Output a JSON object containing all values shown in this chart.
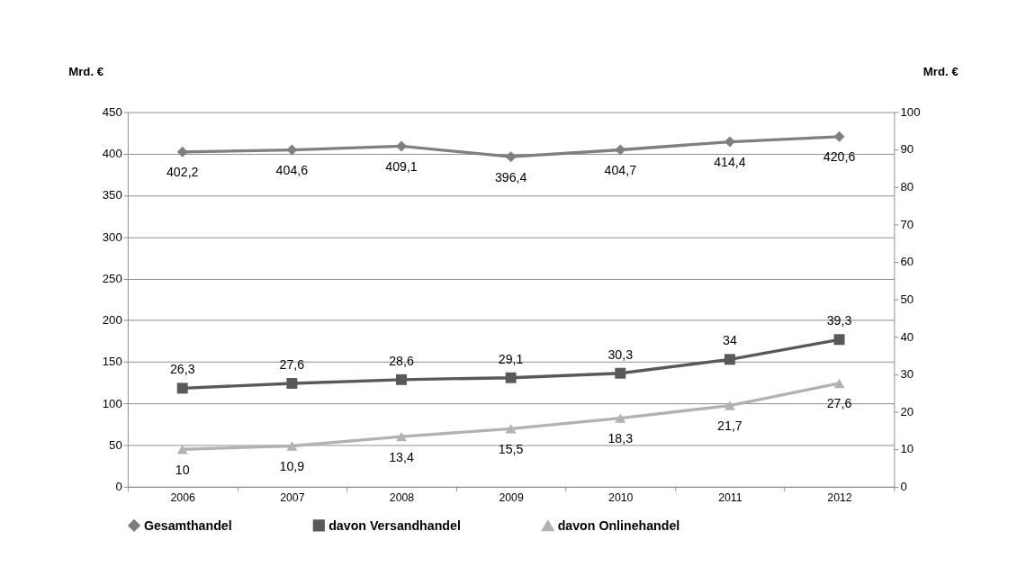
{
  "chart_data": {
    "type": "line",
    "ylabel": "Mrd. €",
    "y2label": "Mrd. €",
    "categories": [
      "2006",
      "2007",
      "2008",
      "2009",
      "2010",
      "2011",
      "2012"
    ],
    "series": [
      {
        "name": "Gesamthandel",
        "color": "#7f7f7f",
        "marker": "diamond",
        "values": [
          402.2,
          404.6,
          409.1,
          396.4,
          404.7,
          414.4,
          420.6
        ],
        "value_labels": [
          "402,2",
          "404,6",
          "409,1",
          "396,4",
          "404,7",
          "414,4",
          "420,6"
        ]
      },
      {
        "name": "davon Versandhandel",
        "color": "#595959",
        "marker": "square",
        "axis": "y2",
        "values": [
          26.3,
          27.6,
          28.6,
          29.1,
          30.3,
          34,
          39.3
        ],
        "value_labels": [
          "26,3",
          "27,6",
          "28,6",
          "29,1",
          "30,3",
          "34",
          "39,3"
        ]
      },
      {
        "name": "davon Onlinehandel",
        "color": "#b2b2b2",
        "marker": "triangle",
        "axis": "y2",
        "values": [
          10,
          10.9,
          13.4,
          15.5,
          18.3,
          21.7,
          27.6
        ],
        "value_labels": [
          "10",
          "10,9",
          "13,4",
          "15,5",
          "18,3",
          "21,7",
          "27,6"
        ]
      }
    ],
    "ylim": [
      0,
      450
    ],
    "yticks": [
      0,
      50,
      100,
      150,
      200,
      250,
      300,
      350,
      400,
      450
    ],
    "y2lim": [
      0,
      100
    ],
    "y2ticks": [
      0,
      10,
      20,
      30,
      40,
      50,
      60,
      70,
      80,
      90,
      100
    ],
    "grid": "y",
    "legend": "bottom",
    "line_style": "solid"
  }
}
